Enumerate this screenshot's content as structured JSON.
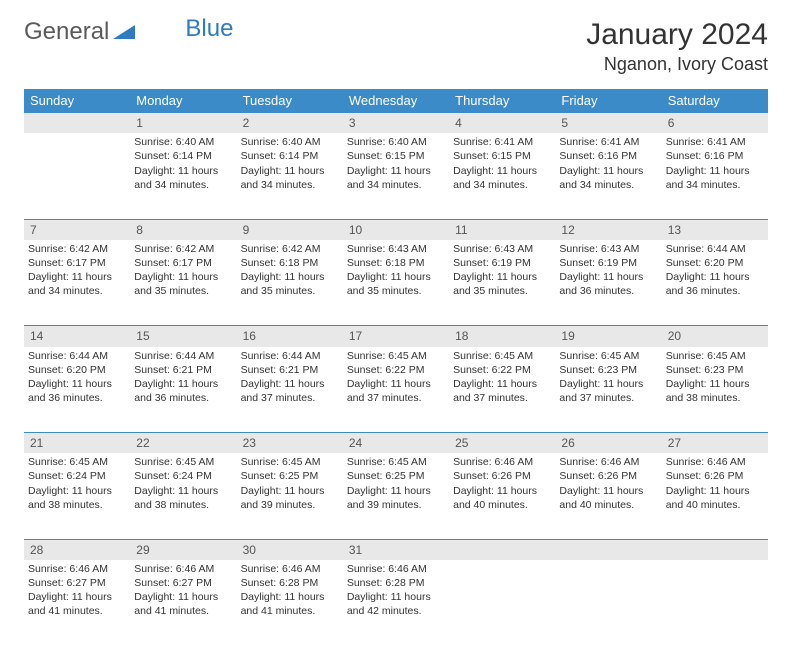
{
  "brand": {
    "part1": "General",
    "part2": "Blue"
  },
  "title": "January 2024",
  "location": "Nganon, Ivory Coast",
  "colors": {
    "header_bg": "#3b8bc8",
    "header_text": "#ffffff",
    "daynum_bg": "#e8e8e8",
    "border": "#3b8bc8",
    "text": "#333333",
    "brand_gray": "#5a5a5a",
    "brand_blue": "#2f7bbf"
  },
  "weekdays": [
    "Sunday",
    "Monday",
    "Tuesday",
    "Wednesday",
    "Thursday",
    "Friday",
    "Saturday"
  ],
  "weeks": [
    {
      "nums": [
        "",
        "1",
        "2",
        "3",
        "4",
        "5",
        "6"
      ],
      "cells": [
        null,
        {
          "sunrise": "Sunrise: 6:40 AM",
          "sunset": "Sunset: 6:14 PM",
          "daylight": "Daylight: 11 hours and 34 minutes."
        },
        {
          "sunrise": "Sunrise: 6:40 AM",
          "sunset": "Sunset: 6:14 PM",
          "daylight": "Daylight: 11 hours and 34 minutes."
        },
        {
          "sunrise": "Sunrise: 6:40 AM",
          "sunset": "Sunset: 6:15 PM",
          "daylight": "Daylight: 11 hours and 34 minutes."
        },
        {
          "sunrise": "Sunrise: 6:41 AM",
          "sunset": "Sunset: 6:15 PM",
          "daylight": "Daylight: 11 hours and 34 minutes."
        },
        {
          "sunrise": "Sunrise: 6:41 AM",
          "sunset": "Sunset: 6:16 PM",
          "daylight": "Daylight: 11 hours and 34 minutes."
        },
        {
          "sunrise": "Sunrise: 6:41 AM",
          "sunset": "Sunset: 6:16 PM",
          "daylight": "Daylight: 11 hours and 34 minutes."
        }
      ]
    },
    {
      "nums": [
        "7",
        "8",
        "9",
        "10",
        "11",
        "12",
        "13"
      ],
      "cells": [
        {
          "sunrise": "Sunrise: 6:42 AM",
          "sunset": "Sunset: 6:17 PM",
          "daylight": "Daylight: 11 hours and 34 minutes."
        },
        {
          "sunrise": "Sunrise: 6:42 AM",
          "sunset": "Sunset: 6:17 PM",
          "daylight": "Daylight: 11 hours and 35 minutes."
        },
        {
          "sunrise": "Sunrise: 6:42 AM",
          "sunset": "Sunset: 6:18 PM",
          "daylight": "Daylight: 11 hours and 35 minutes."
        },
        {
          "sunrise": "Sunrise: 6:43 AM",
          "sunset": "Sunset: 6:18 PM",
          "daylight": "Daylight: 11 hours and 35 minutes."
        },
        {
          "sunrise": "Sunrise: 6:43 AM",
          "sunset": "Sunset: 6:19 PM",
          "daylight": "Daylight: 11 hours and 35 minutes."
        },
        {
          "sunrise": "Sunrise: 6:43 AM",
          "sunset": "Sunset: 6:19 PM",
          "daylight": "Daylight: 11 hours and 36 minutes."
        },
        {
          "sunrise": "Sunrise: 6:44 AM",
          "sunset": "Sunset: 6:20 PM",
          "daylight": "Daylight: 11 hours and 36 minutes."
        }
      ]
    },
    {
      "nums": [
        "14",
        "15",
        "16",
        "17",
        "18",
        "19",
        "20"
      ],
      "cells": [
        {
          "sunrise": "Sunrise: 6:44 AM",
          "sunset": "Sunset: 6:20 PM",
          "daylight": "Daylight: 11 hours and 36 minutes."
        },
        {
          "sunrise": "Sunrise: 6:44 AM",
          "sunset": "Sunset: 6:21 PM",
          "daylight": "Daylight: 11 hours and 36 minutes."
        },
        {
          "sunrise": "Sunrise: 6:44 AM",
          "sunset": "Sunset: 6:21 PM",
          "daylight": "Daylight: 11 hours and 37 minutes."
        },
        {
          "sunrise": "Sunrise: 6:45 AM",
          "sunset": "Sunset: 6:22 PM",
          "daylight": "Daylight: 11 hours and 37 minutes."
        },
        {
          "sunrise": "Sunrise: 6:45 AM",
          "sunset": "Sunset: 6:22 PM",
          "daylight": "Daylight: 11 hours and 37 minutes."
        },
        {
          "sunrise": "Sunrise: 6:45 AM",
          "sunset": "Sunset: 6:23 PM",
          "daylight": "Daylight: 11 hours and 37 minutes."
        },
        {
          "sunrise": "Sunrise: 6:45 AM",
          "sunset": "Sunset: 6:23 PM",
          "daylight": "Daylight: 11 hours and 38 minutes."
        }
      ]
    },
    {
      "nums": [
        "21",
        "22",
        "23",
        "24",
        "25",
        "26",
        "27"
      ],
      "cells": [
        {
          "sunrise": "Sunrise: 6:45 AM",
          "sunset": "Sunset: 6:24 PM",
          "daylight": "Daylight: 11 hours and 38 minutes."
        },
        {
          "sunrise": "Sunrise: 6:45 AM",
          "sunset": "Sunset: 6:24 PM",
          "daylight": "Daylight: 11 hours and 38 minutes."
        },
        {
          "sunrise": "Sunrise: 6:45 AM",
          "sunset": "Sunset: 6:25 PM",
          "daylight": "Daylight: 11 hours and 39 minutes."
        },
        {
          "sunrise": "Sunrise: 6:45 AM",
          "sunset": "Sunset: 6:25 PM",
          "daylight": "Daylight: 11 hours and 39 minutes."
        },
        {
          "sunrise": "Sunrise: 6:46 AM",
          "sunset": "Sunset: 6:26 PM",
          "daylight": "Daylight: 11 hours and 40 minutes."
        },
        {
          "sunrise": "Sunrise: 6:46 AM",
          "sunset": "Sunset: 6:26 PM",
          "daylight": "Daylight: 11 hours and 40 minutes."
        },
        {
          "sunrise": "Sunrise: 6:46 AM",
          "sunset": "Sunset: 6:26 PM",
          "daylight": "Daylight: 11 hours and 40 minutes."
        }
      ]
    },
    {
      "nums": [
        "28",
        "29",
        "30",
        "31",
        "",
        "",
        ""
      ],
      "cells": [
        {
          "sunrise": "Sunrise: 6:46 AM",
          "sunset": "Sunset: 6:27 PM",
          "daylight": "Daylight: 11 hours and 41 minutes."
        },
        {
          "sunrise": "Sunrise: 6:46 AM",
          "sunset": "Sunset: 6:27 PM",
          "daylight": "Daylight: 11 hours and 41 minutes."
        },
        {
          "sunrise": "Sunrise: 6:46 AM",
          "sunset": "Sunset: 6:28 PM",
          "daylight": "Daylight: 11 hours and 41 minutes."
        },
        {
          "sunrise": "Sunrise: 6:46 AM",
          "sunset": "Sunset: 6:28 PM",
          "daylight": "Daylight: 11 hours and 42 minutes."
        },
        null,
        null,
        null
      ]
    }
  ]
}
